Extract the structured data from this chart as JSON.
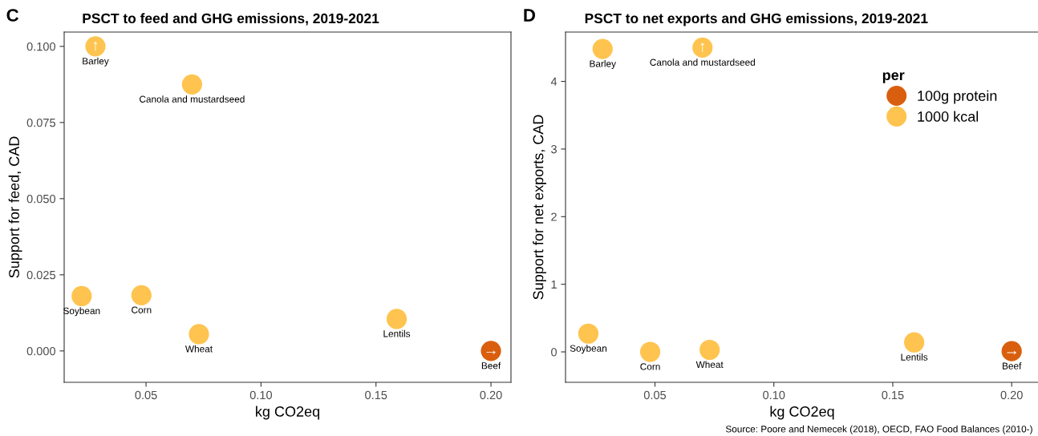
{
  "chart_data": [
    {
      "type": "scatter",
      "title": "PSCT to feed and GHG emissions, 2019-2021",
      "xlabel": "kg CO2eq",
      "ylabel": "Support for feed, CAD",
      "xlim": [
        0.0144,
        0.2087
      ],
      "xticks": [
        {
          "value": 0.05,
          "label": "0.05"
        },
        {
          "value": 0.1,
          "label": "0.10"
        },
        {
          "value": 0.15,
          "label": "0.15"
        },
        {
          "value": 0.2,
          "label": "0.20"
        }
      ],
      "ylim": [
        -0.0103,
        0.1047
      ],
      "yticks": [
        {
          "value": 0,
          "label": "0.000"
        },
        {
          "value": 0.025,
          "label": "0.025"
        },
        {
          "value": 0.05,
          "label": "0.050"
        },
        {
          "value": 0.075,
          "label": "0.075"
        },
        {
          "value": 0.1,
          "label": "0.100"
        }
      ],
      "grid": false,
      "legend": false,
      "marker": "circle",
      "series": [
        {
          "color": "#d95f0e",
          "x": [
            0.2
          ],
          "values": [
            0.0
          ]
        },
        {
          "color": "#fec44f",
          "x": [
            0.028,
            0.07,
            0.022,
            0.048,
            0.073,
            0.159
          ],
          "values": [
            0.1,
            0.0875,
            0.018,
            0.0183,
            0.0055,
            0.0105
          ]
        }
      ],
      "annotations": [
        "C",
        {
          "text": "Barley",
          "x": 0.028,
          "y": 0.1
        },
        {
          "text": "Canola and mustardseed",
          "x": 0.07,
          "y": 0.0875
        },
        {
          "text": "Soybean",
          "x": 0.022,
          "y": 0.018
        },
        {
          "text": "Corn",
          "x": 0.048,
          "y": 0.0183
        },
        {
          "text": "Wheat",
          "x": 0.073,
          "y": 0.0055
        },
        {
          "text": "Lentils",
          "x": 0.159,
          "y": 0.0105
        },
        {
          "text": "Beef",
          "x": 0.2,
          "y": 0.0
        },
        {
          "text": "↑",
          "x": 0.028,
          "y": 0.1
        },
        {
          "text": "→",
          "x": 0.2,
          "y": 0.0
        }
      ]
    },
    {
      "type": "scatter",
      "title": "PSCT to net exports and GHG emissions, 2019-2021",
      "xlabel": "kg CO2eq",
      "ylabel": "Support for net exports, CAD",
      "xlim": [
        0.0124,
        0.2114
      ],
      "xticks": [
        {
          "value": 0.05,
          "label": "0.05"
        },
        {
          "value": 0.1,
          "label": "0.10"
        },
        {
          "value": 0.15,
          "label": "0.15"
        },
        {
          "value": 0.2,
          "label": "0.20"
        }
      ],
      "ylim": [
        -0.45,
        4.73
      ],
      "yticks": [
        0,
        1,
        2,
        3,
        4
      ],
      "grid": false,
      "legend": "top right",
      "legend_title": "per",
      "marker": "circle",
      "series": [
        {
          "name": "100g protein",
          "color": "#d95f0e",
          "x": [
            0.2
          ],
          "values": [
            0.01
          ]
        },
        {
          "name": "1000 kcal",
          "color": "#fec44f",
          "x": [
            0.028,
            0.07,
            0.022,
            0.048,
            0.073,
            0.159
          ],
          "values": [
            4.48,
            4.5,
            0.27,
            0.0,
            0.03,
            0.14
          ]
        }
      ],
      "annotations": [
        "D",
        "Source: Poore and Nemecek (2018), OECD, FAO Food Balances (2010-)",
        {
          "text": "Barley",
          "x": 0.028,
          "y": 4.48
        },
        {
          "text": "Canola and mustardseed",
          "x": 0.07,
          "y": 4.5
        },
        {
          "text": "Soybean",
          "x": 0.022,
          "y": 0.27
        },
        {
          "text": "Corn",
          "x": 0.048,
          "y": 0.0
        },
        {
          "text": "Wheat",
          "x": 0.073,
          "y": 0.03
        },
        {
          "text": "Lentils",
          "x": 0.159,
          "y": 0.14
        },
        {
          "text": "Beef",
          "x": 0.2,
          "y": 0.01
        },
        {
          "text": "↑",
          "x": 0.07,
          "y": 4.5
        },
        {
          "text": "→",
          "x": 0.2,
          "y": 0.01
        }
      ]
    }
  ]
}
